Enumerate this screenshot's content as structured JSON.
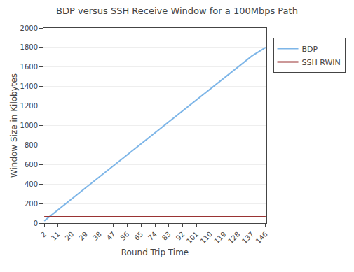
{
  "chart_data": {
    "type": "line",
    "title": "BDP versus SSH Receive Window for a 100Mbps Path",
    "xlabel": "Round Trip Time",
    "ylabel": "Window Size in Kilobytes",
    "x": [
      2,
      11,
      20,
      29,
      38,
      47,
      56,
      65,
      74,
      83,
      92,
      101,
      110,
      119,
      128,
      137,
      146
    ],
    "xlim": [
      1.5,
      146.5
    ],
    "xticks": [
      2,
      11,
      20,
      29,
      38,
      47,
      56,
      65,
      74,
      83,
      92,
      101,
      110,
      119,
      128,
      137,
      146
    ],
    "ylim": [
      0,
      2000
    ],
    "yticks": [
      0,
      200,
      400,
      600,
      800,
      1000,
      1200,
      1400,
      1600,
      1800,
      2000
    ],
    "grid": "y",
    "legend": "upper right",
    "series": [
      {
        "name": "BDP",
        "color": "#7EB6E8",
        "values": [
          22.5,
          137.5,
          250,
          362.5,
          475,
          587.5,
          700,
          812.5,
          925,
          1037.5,
          1150,
          1262.5,
          1375,
          1487.5,
          1600,
          1712.5,
          1800
        ]
      },
      {
        "name": "SSH RWIN",
        "color": "#993333",
        "x": [
          2,
          146
        ],
        "values": [
          64,
          64
        ]
      }
    ]
  }
}
